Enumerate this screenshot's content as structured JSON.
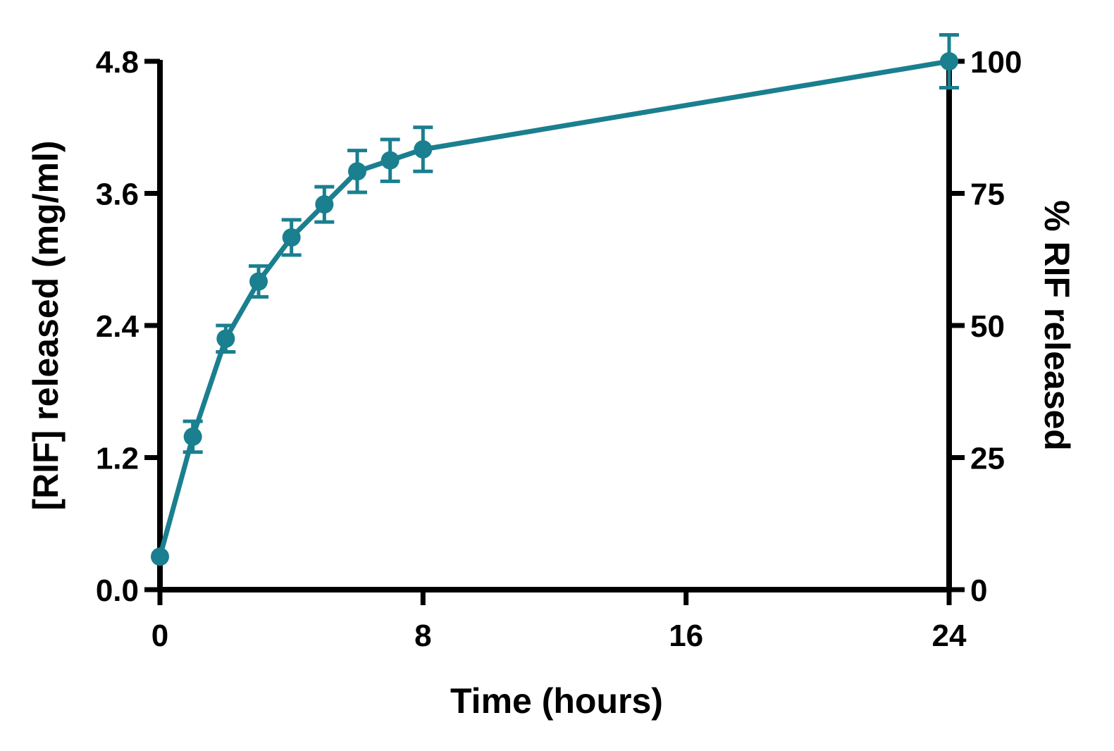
{
  "chart_data": {
    "type": "line",
    "title": "",
    "xlabel": "Time (hours)",
    "ylabel": "[RIF] released (mg/ml)",
    "y2label": "% RIF released",
    "xlim": [
      0,
      24
    ],
    "ylim": [
      0,
      4.8
    ],
    "y2lim": [
      0,
      100
    ],
    "xticks": [
      "0",
      "8",
      "16",
      "24"
    ],
    "yticks": [
      "0.0",
      "1.2",
      "2.4",
      "3.6",
      "4.8"
    ],
    "y2ticks": [
      "0",
      "25",
      "50",
      "75",
      "100"
    ],
    "grid": false,
    "legend": "none",
    "color": "#1a7f8f",
    "series": [
      {
        "x": [
          0,
          1,
          2,
          3,
          4,
          5,
          6,
          7,
          8,
          24
        ],
        "y": [
          0.3,
          1.39,
          2.28,
          2.8,
          3.2,
          3.5,
          3.8,
          3.9,
          4.0,
          4.8
        ],
        "error": [
          0.0,
          0.14,
          0.12,
          0.14,
          0.16,
          0.16,
          0.19,
          0.19,
          0.2,
          0.24
        ]
      }
    ]
  }
}
